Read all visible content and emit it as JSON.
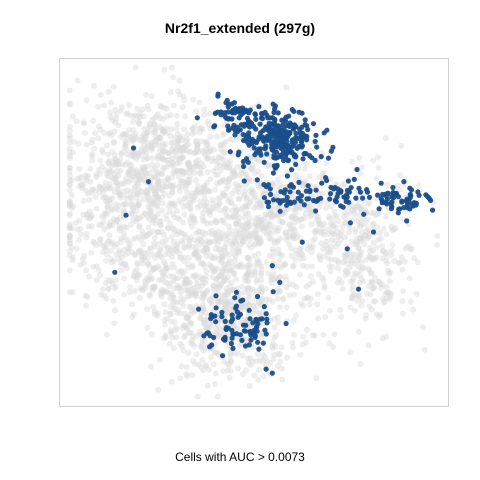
{
  "chart_data": {
    "type": "scatter",
    "title": "Nr2f1_extended (297g)",
    "xlabel": "Cells with AUC > 0.0073",
    "ylabel": "",
    "grid": false,
    "colors": {
      "high": "#1a4e8a",
      "background": "#d9d9d9"
    },
    "series": [
      {
        "name": "",
        "role": "cells-above-threshold",
        "color": "#1a4e8a",
        "clusters": [
          {
            "cx": 0.57,
            "cy": 0.78,
            "sx": 0.05,
            "sy": 0.045,
            "n": 260
          },
          {
            "cx": 0.44,
            "cy": 0.84,
            "sx": 0.03,
            "sy": 0.03,
            "n": 60
          },
          {
            "cx": 0.6,
            "cy": 0.6,
            "sx": 0.04,
            "sy": 0.02,
            "n": 40
          },
          {
            "cx": 0.88,
            "cy": 0.6,
            "sx": 0.04,
            "sy": 0.02,
            "n": 60
          },
          {
            "cx": 0.74,
            "cy": 0.62,
            "sx": 0.04,
            "sy": 0.03,
            "n": 40
          },
          {
            "cx": 0.46,
            "cy": 0.22,
            "sx": 0.05,
            "sy": 0.04,
            "n": 90
          }
        ],
        "scattered_points": [
          [
            0.18,
            0.75
          ],
          [
            0.22,
            0.65
          ],
          [
            0.16,
            0.55
          ],
          [
            0.13,
            0.38
          ],
          [
            0.35,
            0.84
          ],
          [
            0.7,
            0.72
          ],
          [
            0.75,
            0.45
          ],
          [
            0.63,
            0.47
          ],
          [
            0.57,
            0.35
          ],
          [
            0.78,
            0.33
          ],
          [
            0.4,
            0.31
          ],
          [
            0.55,
            0.08
          ],
          [
            0.55,
            0.4
          ],
          [
            0.65,
            0.62
          ],
          [
            0.82,
            0.5
          ]
        ]
      },
      {
        "name": "",
        "role": "background-cells",
        "color": "#d9d9d9",
        "clusters": [
          {
            "cx": 0.18,
            "cy": 0.6,
            "sx": 0.11,
            "sy": 0.14,
            "n": 700
          },
          {
            "cx": 0.28,
            "cy": 0.75,
            "sx": 0.1,
            "sy": 0.07,
            "n": 300
          },
          {
            "cx": 0.46,
            "cy": 0.5,
            "sx": 0.1,
            "sy": 0.13,
            "n": 550
          },
          {
            "cx": 0.62,
            "cy": 0.55,
            "sx": 0.1,
            "sy": 0.1,
            "n": 300
          },
          {
            "cx": 0.8,
            "cy": 0.44,
            "sx": 0.07,
            "sy": 0.12,
            "n": 300
          },
          {
            "cx": 0.43,
            "cy": 0.22,
            "sx": 0.09,
            "sy": 0.08,
            "n": 400
          },
          {
            "cx": 0.3,
            "cy": 0.36,
            "sx": 0.1,
            "sy": 0.07,
            "n": 200
          }
        ]
      }
    ]
  }
}
